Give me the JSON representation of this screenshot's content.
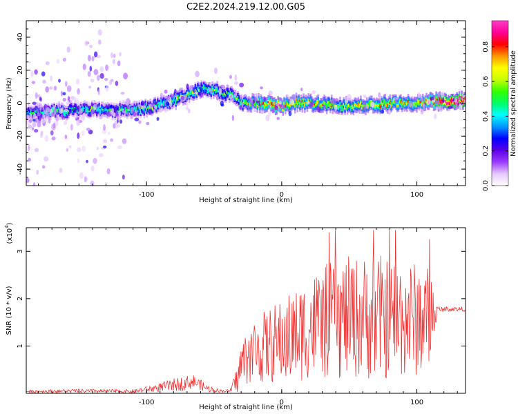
{
  "figure_title": "C2E2.2024.219.12.00.G05",
  "chart_data": [
    {
      "type": "heatmap",
      "title": "C2E2.2024.219.12.00.G05",
      "xlabel": "Height of straight line (km)",
      "ylabel": "Frequency (Hz)",
      "xlim": [
        -189,
        136
      ],
      "ylim": [
        -50,
        50
      ],
      "xticks": [
        -100,
        0,
        100
      ],
      "yticks": [
        -40,
        -20,
        0,
        20,
        40
      ],
      "xtick_labels": [
        "-100",
        "0",
        "100"
      ],
      "ytick_labels": [
        "-40",
        "-20",
        "0",
        "20",
        "40"
      ],
      "colorbar": {
        "label": "Normalized spectral amplitude",
        "range": [
          0,
          0.95
        ],
        "ticks": [
          0.0,
          0.2,
          0.4,
          0.6,
          0.8
        ],
        "tick_labels": [
          "0.0",
          "0.2",
          "0.4",
          "0.6",
          "0.8"
        ],
        "colors": [
          "#ffffff",
          "#e6c8ff",
          "#9b3cff",
          "#5a00e6",
          "#0000ff",
          "#0096ff",
          "#00ffff",
          "#00ff64",
          "#32ff00",
          "#c8ff00",
          "#ffff00",
          "#ff9600",
          "#ff0000",
          "#ff0096",
          "#ff3cc8"
        ]
      },
      "ridge": {
        "x": [
          -189,
          -170,
          -150,
          -130,
          -110,
          -95,
          -85,
          -75,
          -65,
          -58,
          -50,
          -42,
          -35,
          -30,
          -20,
          -10,
          -5,
          0,
          5,
          10,
          20,
          30,
          40,
          50,
          60,
          70,
          80,
          90,
          100,
          110,
          120,
          136
        ],
        "freq": [
          -6,
          -5,
          -4,
          -4.5,
          -4.5,
          -2,
          0,
          3,
          7,
          9,
          8,
          6,
          4,
          0,
          0,
          0,
          -1,
          -2,
          -1,
          0,
          0,
          -1,
          -1,
          -2,
          -1,
          -1,
          0,
          0,
          0,
          1,
          1,
          1.5
        ],
        "amplitude": [
          0.35,
          0.4,
          0.4,
          0.4,
          0.42,
          0.45,
          0.45,
          0.5,
          0.5,
          0.45,
          0.5,
          0.45,
          0.45,
          0.5,
          0.6,
          0.7,
          0.8,
          0.7,
          0.6,
          0.6,
          0.6,
          0.6,
          0.55,
          0.55,
          0.6,
          0.6,
          0.6,
          0.6,
          0.6,
          0.7,
          0.9,
          0.95
        ]
      }
    },
    {
      "type": "line",
      "xlabel": "Height of straight line (km)",
      "ylabel": "SNR (10 * v/v)",
      "y_multiplier": "(x10",
      "y_multiplier_exp": "4",
      "y_multiplier_close": ")",
      "xlim": [
        -189,
        136
      ],
      "ylim": [
        0,
        3.5
      ],
      "xticks": [
        -100,
        0,
        100
      ],
      "yticks": [
        1,
        2,
        3
      ],
      "xtick_labels": [
        "-100",
        "0",
        "100"
      ],
      "ytick_labels": [
        "1",
        "2",
        "3"
      ],
      "series_color": "#ee3333",
      "envelope": {
        "x": [
          -189,
          -150,
          -110,
          -95,
          -85,
          -75,
          -65,
          -55,
          -45,
          -38,
          -33,
          -30,
          -25,
          -20,
          -10,
          0,
          10,
          20,
          30,
          40,
          50,
          60,
          70,
          80,
          90,
          100,
          110,
          115,
          120,
          136
        ],
        "mean": [
          0.04,
          0.05,
          0.04,
          0.1,
          0.15,
          0.2,
          0.25,
          0.1,
          0.05,
          0.05,
          0.3,
          0.6,
          0.8,
          0.9,
          1.0,
          1.1,
          1.2,
          1.4,
          1.5,
          1.55,
          1.6,
          1.6,
          1.6,
          1.6,
          1.6,
          1.55,
          1.6,
          1.75,
          1.78,
          1.78
        ],
        "spread": [
          0.03,
          0.04,
          0.04,
          0.08,
          0.12,
          0.15,
          0.15,
          0.08,
          0.03,
          0.03,
          0.3,
          0.5,
          0.6,
          0.7,
          0.8,
          0.9,
          1.0,
          1.1,
          1.2,
          1.3,
          1.3,
          1.3,
          1.35,
          1.3,
          1.3,
          1.2,
          1.1,
          0.1,
          0.05,
          0.05
        ],
        "peak": 3.45
      }
    }
  ]
}
